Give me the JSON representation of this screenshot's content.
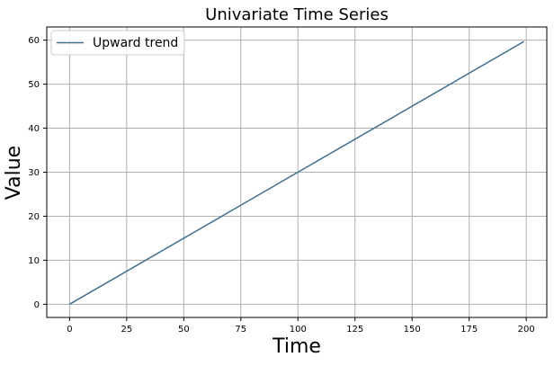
{
  "chart_data": {
    "type": "line",
    "title": "Univariate Time Series",
    "xlabel": "Time",
    "ylabel": "Value",
    "xlim": [
      -10,
      209
    ],
    "ylim": [
      -3,
      63
    ],
    "xticks": [
      0,
      25,
      50,
      75,
      100,
      125,
      150,
      175,
      200
    ],
    "yticks": [
      0,
      10,
      20,
      30,
      40,
      50,
      60
    ],
    "grid": true,
    "legend_position": "top-left",
    "series": [
      {
        "name": "Upward trend",
        "color": "#3f6f8f",
        "x": [
          0,
          199
        ],
        "y": [
          0,
          59.7
        ]
      }
    ]
  }
}
